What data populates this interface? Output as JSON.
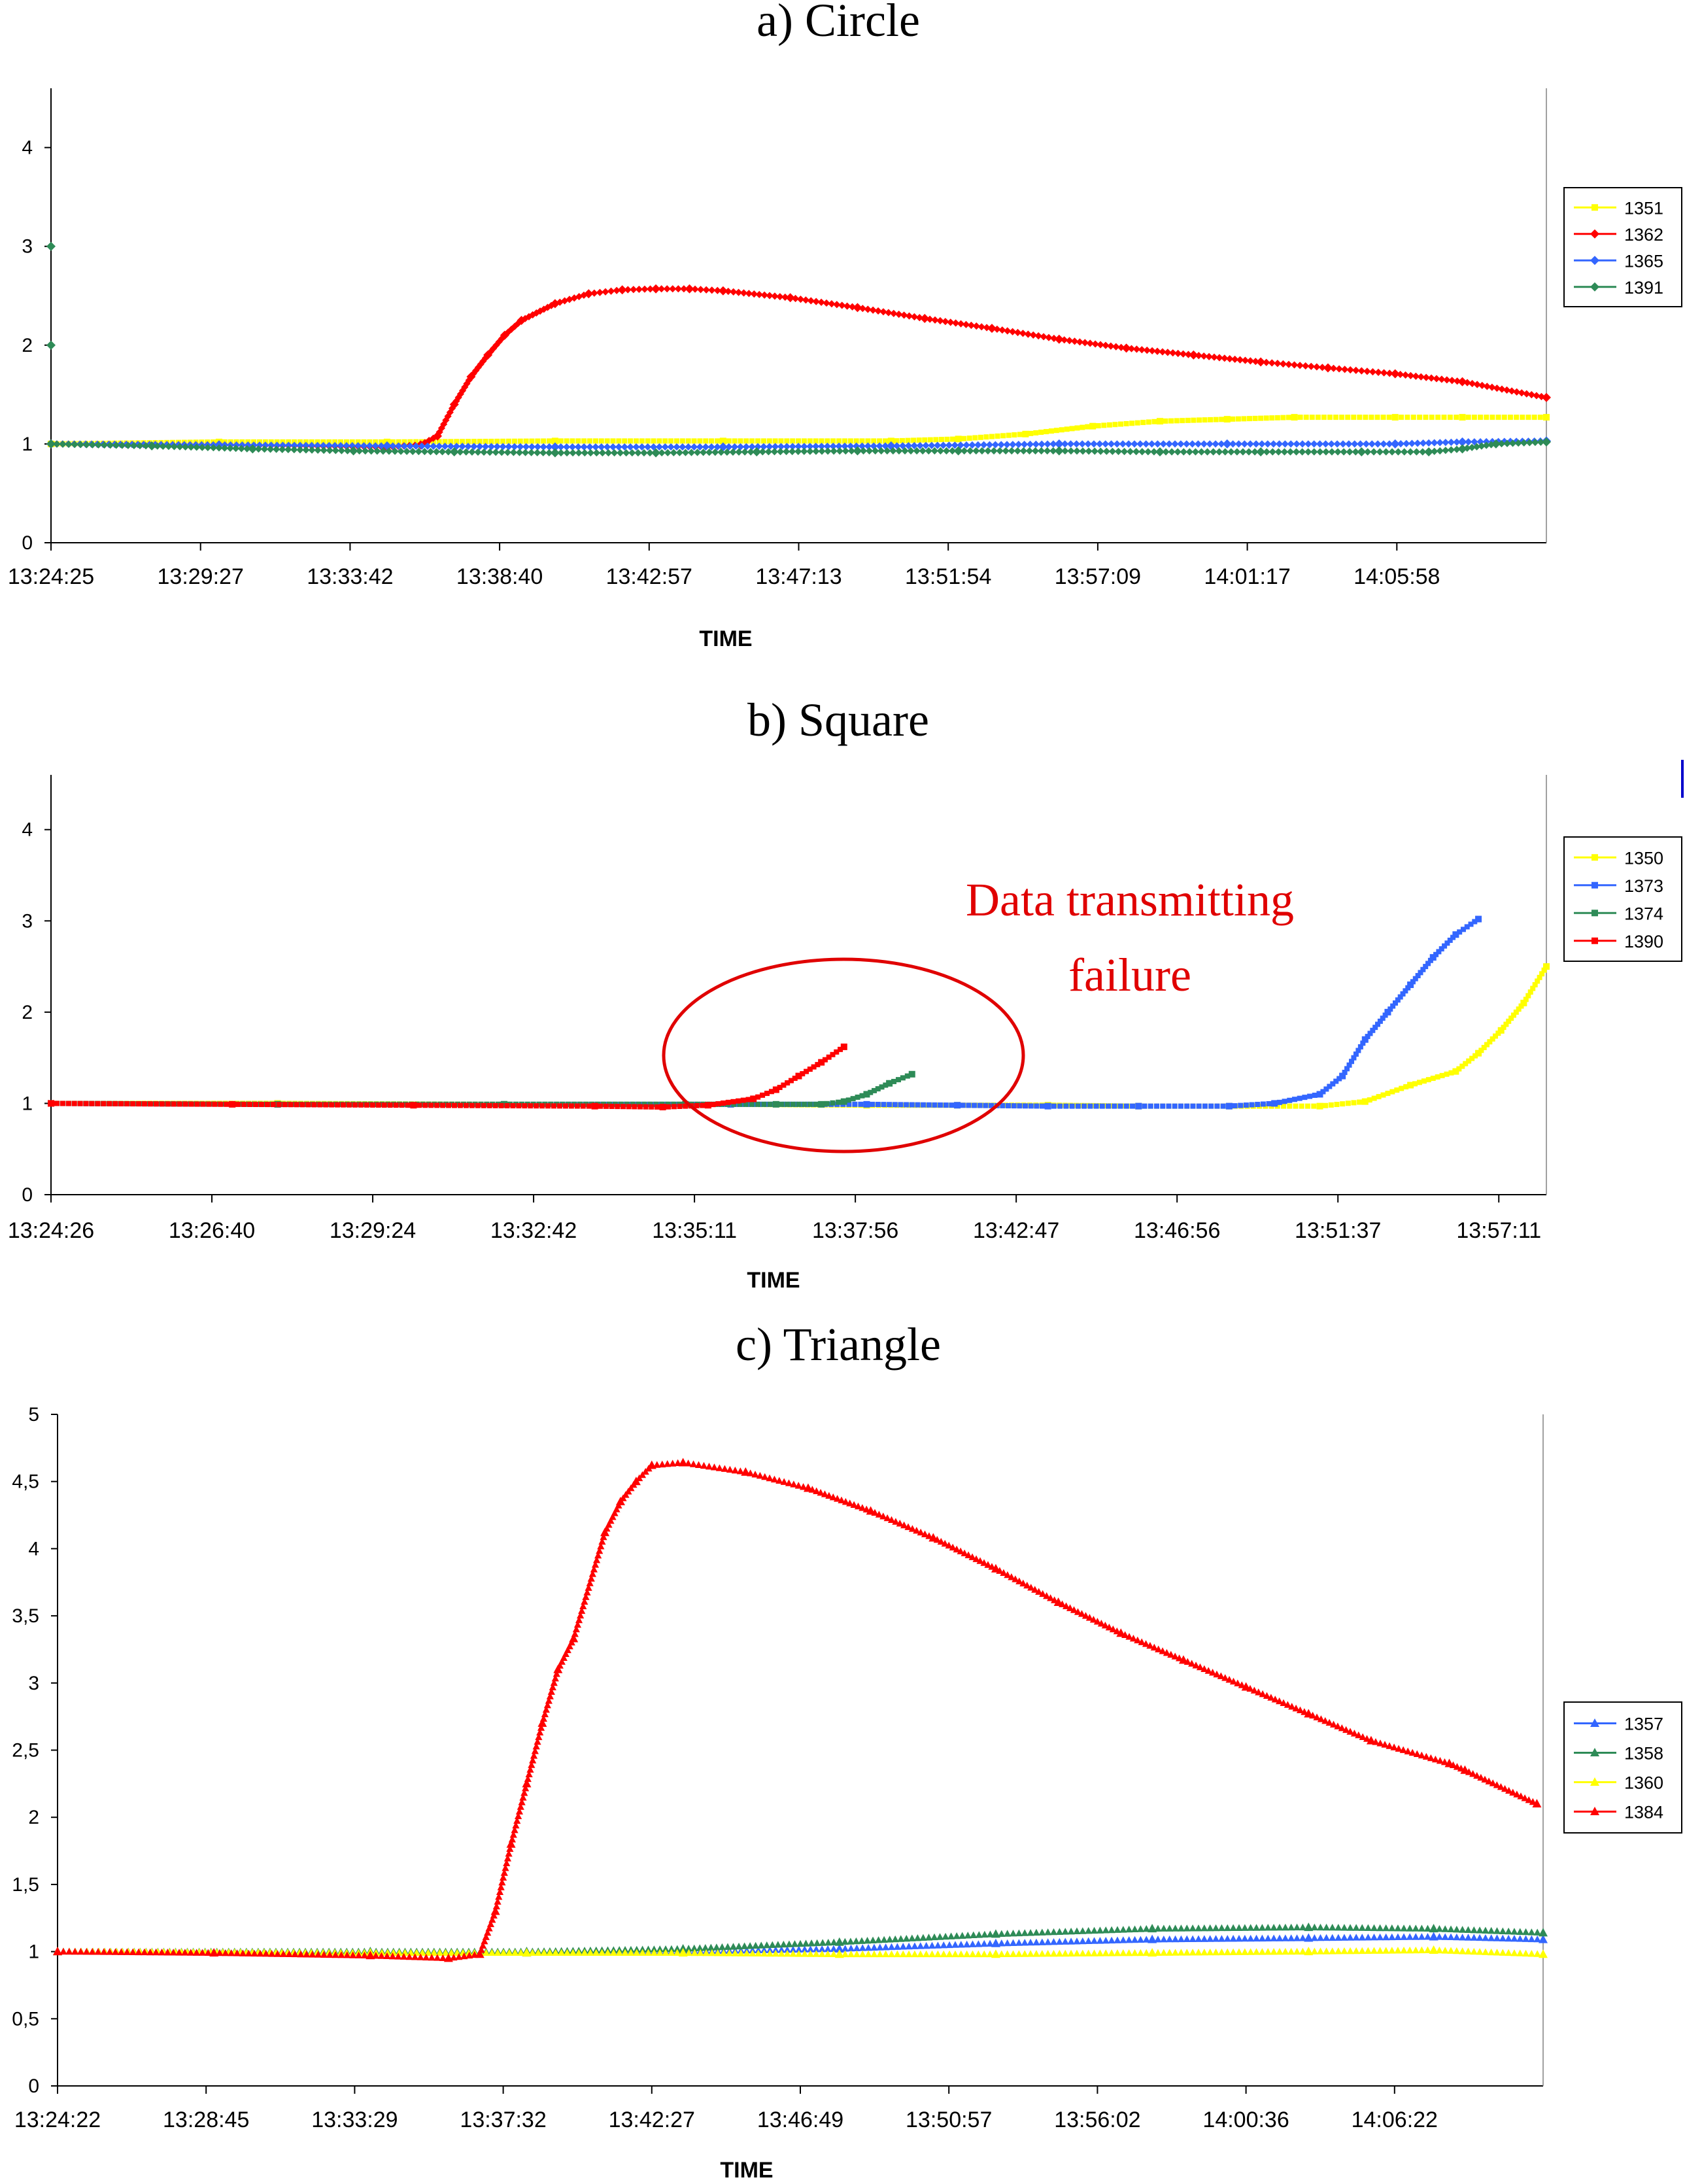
{
  "chart_data": [
    {
      "type": "scatter",
      "title": "a) Circle",
      "xlabel": "TIME",
      "ylabel": "",
      "ylim": [
        0,
        4.6
      ],
      "yticks": [
        "0",
        "1",
        "2",
        "3",
        "4"
      ],
      "ytick_values": [
        0,
        1,
        2,
        3,
        4
      ],
      "xlim_min": [
        0,
        44.5
      ],
      "xticks": [
        "13:24:25",
        "13:29:27",
        "13:33:42",
        "13:38:40",
        "13:42:57",
        "13:47:13",
        "13:51:54",
        "13:57:09",
        "14:01:17",
        "14:05:58"
      ],
      "xtick_positions_min": [
        0,
        4.45,
        8.9,
        13.35,
        17.8,
        22.25,
        26.7,
        31.15,
        35.6,
        40.05
      ],
      "legend": [
        "1351",
        "1362",
        "1365",
        "1391"
      ],
      "series": [
        {
          "name": "1351",
          "color": "#ffff00",
          "marker": "square",
          "x": [
            0,
            5,
            10,
            15,
            20,
            25,
            27,
            29,
            31,
            33,
            35,
            37,
            40,
            42,
            44.5
          ],
          "y": [
            1.0,
            1.02,
            1.02,
            1.03,
            1.03,
            1.03,
            1.05,
            1.1,
            1.18,
            1.23,
            1.25,
            1.27,
            1.27,
            1.27,
            1.27
          ]
        },
        {
          "name": "1362",
          "color": "#ff0000",
          "marker": "diamond",
          "x": [
            0,
            5,
            10,
            11,
            11.5,
            12,
            12.5,
            13,
            13.5,
            14,
            15,
            16,
            17,
            18,
            19,
            20,
            22,
            24,
            26,
            28,
            30,
            32,
            34,
            36,
            38,
            40,
            42,
            44.5
          ],
          "y": [
            1.0,
            0.99,
            0.97,
            0.99,
            1.08,
            1.4,
            1.68,
            1.9,
            2.1,
            2.25,
            2.42,
            2.52,
            2.56,
            2.57,
            2.57,
            2.55,
            2.48,
            2.38,
            2.27,
            2.17,
            2.06,
            1.97,
            1.9,
            1.83,
            1.77,
            1.71,
            1.63,
            1.47
          ]
        },
        {
          "name": "1365",
          "color": "#3366ff",
          "marker": "diamond",
          "x": [
            0,
            5,
            10,
            15,
            20,
            25,
            30,
            35,
            40,
            42,
            44.5
          ],
          "y": [
            1.0,
            0.99,
            0.98,
            0.97,
            0.97,
            0.98,
            1.0,
            1.0,
            1.0,
            1.02,
            1.03
          ]
        },
        {
          "name": "1391",
          "color": "#2e8b57",
          "marker": "diamond",
          "x": [
            0,
            0,
            0,
            3,
            6,
            9,
            12,
            15,
            18,
            21,
            24,
            27,
            30,
            33,
            36,
            39,
            41,
            42,
            43,
            44.5
          ],
          "y": [
            3.0,
            2.0,
            1.0,
            0.98,
            0.95,
            0.93,
            0.92,
            0.91,
            0.91,
            0.92,
            0.93,
            0.93,
            0.93,
            0.92,
            0.92,
            0.92,
            0.92,
            0.95,
            1.0,
            1.02
          ]
        }
      ]
    },
    {
      "type": "scatter",
      "title": "b) Square",
      "xlabel": "TIME",
      "ylabel": "",
      "ylim": [
        0,
        4.6
      ],
      "yticks": [
        "0",
        "1",
        "2",
        "3",
        "4"
      ],
      "ytick_values": [
        0,
        1,
        2,
        3,
        4
      ],
      "xlim_min": [
        0,
        33.0
      ],
      "xticks": [
        "13:24:26",
        "13:26:40",
        "13:29:24",
        "13:32:42",
        "13:35:11",
        "13:37:56",
        "13:42:47",
        "13:46:56",
        "13:51:37",
        "13:57:11"
      ],
      "xtick_positions_min": [
        0,
        3.55,
        7.1,
        10.65,
        14.2,
        17.75,
        21.3,
        24.85,
        28.4,
        31.95
      ],
      "legend": [
        "1350",
        "1373",
        "1374",
        "1390"
      ],
      "annotation": {
        "line1": "Data transmitting",
        "line2": "failure"
      },
      "series": [
        {
          "name": "1350",
          "color": "#ffff00",
          "marker": "square",
          "x": [
            0,
            5,
            10,
            15,
            18,
            20,
            22,
            24,
            26,
            28,
            29,
            30,
            31,
            31.5,
            32,
            32.5,
            33
          ],
          "y": [
            1.0,
            1.0,
            0.99,
            0.99,
            0.98,
            0.98,
            0.98,
            0.97,
            0.97,
            0.97,
            1.02,
            1.2,
            1.35,
            1.55,
            1.8,
            2.1,
            2.5
          ]
        },
        {
          "name": "1373",
          "color": "#3366ff",
          "marker": "square",
          "x": [
            0,
            5,
            10,
            15,
            18,
            20,
            22,
            24,
            26,
            27,
            28,
            28.5,
            29,
            29.5,
            30,
            30.5,
            31,
            31.5
          ],
          "y": [
            1.0,
            0.99,
            0.99,
            0.99,
            0.99,
            0.98,
            0.97,
            0.97,
            0.97,
            1.0,
            1.1,
            1.3,
            1.7,
            2.0,
            2.3,
            2.6,
            2.85,
            3.02
          ]
        },
        {
          "name": "1374",
          "color": "#2e8b57",
          "marker": "square",
          "x": [
            0,
            5,
            10,
            14,
            16,
            17,
            17.5,
            18,
            18.5,
            19
          ],
          "y": [
            1.0,
            0.99,
            0.99,
            0.99,
            0.99,
            0.99,
            1.02,
            1.1,
            1.22,
            1.32
          ]
        },
        {
          "name": "1390",
          "color": "#ff0000",
          "marker": "square",
          "x": [
            0,
            4,
            8,
            12,
            13.5,
            14.5,
            15.5,
            16,
            16.5,
            17,
            17.5
          ],
          "y": [
            1.0,
            0.99,
            0.98,
            0.97,
            0.96,
            0.98,
            1.05,
            1.15,
            1.3,
            1.45,
            1.62
          ]
        }
      ]
    },
    {
      "type": "scatter",
      "title": "c) Triangle",
      "xlabel": "TIME",
      "ylabel": "",
      "ylim": [
        0,
        5
      ],
      "yticks": [
        "0",
        "0,5",
        "1",
        "1,5",
        "2",
        "2,5",
        "3",
        "3,5",
        "4",
        "4,5",
        "5"
      ],
      "ytick_values": [
        0,
        0.5,
        1,
        1.5,
        2,
        2.5,
        3,
        3.5,
        4,
        4.5,
        5
      ],
      "xlim_min": [
        0,
        47.5
      ],
      "xticks": [
        "13:24:22",
        "13:28:45",
        "13:33:29",
        "13:37:32",
        "13:42:27",
        "13:46:49",
        "13:50:57",
        "13:56:02",
        "14:00:36",
        "14:06:22"
      ],
      "xtick_positions_min": [
        0,
        4.75,
        9.5,
        14.25,
        19.0,
        23.75,
        28.5,
        33.25,
        38.0,
        42.75
      ],
      "legend": [
        "1357",
        "1358",
        "1360",
        "1384"
      ],
      "series": [
        {
          "name": "1357",
          "color": "#3366ff",
          "marker": "triangle",
          "x": [
            0,
            10,
            15,
            20,
            25,
            30,
            35,
            40,
            44,
            47.5
          ],
          "y": [
            1.0,
            0.99,
            0.99,
            1.0,
            1.02,
            1.06,
            1.09,
            1.1,
            1.11,
            1.09
          ]
        },
        {
          "name": "1358",
          "color": "#2e8b57",
          "marker": "triangle",
          "x": [
            0,
            10,
            15,
            20,
            25,
            30,
            35,
            40,
            44,
            47.5
          ],
          "y": [
            1.0,
            1.0,
            1.0,
            1.02,
            1.07,
            1.13,
            1.17,
            1.18,
            1.17,
            1.14
          ]
        },
        {
          "name": "1360",
          "color": "#ffff00",
          "marker": "triangle",
          "x": [
            0,
            10,
            15,
            20,
            25,
            30,
            35,
            40,
            44,
            47.5
          ],
          "y": [
            1.0,
            0.99,
            0.99,
            0.99,
            0.98,
            0.98,
            0.99,
            1.0,
            1.01,
            0.98
          ]
        },
        {
          "name": "1384",
          "color": "#ff0000",
          "marker": "triangle",
          "x": [
            0,
            5,
            10,
            12.5,
            13.5,
            14,
            14.5,
            15,
            15.5,
            16,
            16.5,
            17.5,
            18,
            18.5,
            19,
            20,
            22,
            24,
            26,
            28,
            30,
            32,
            34,
            36,
            38,
            40,
            42,
            44.5,
            45,
            47.3
          ],
          "y": [
            1.0,
            0.99,
            0.97,
            0.95,
            0.98,
            1.3,
            1.8,
            2.25,
            2.7,
            3.1,
            3.33,
            4.12,
            4.35,
            4.5,
            4.62,
            4.64,
            4.57,
            4.45,
            4.28,
            4.08,
            3.85,
            3.6,
            3.37,
            3.17,
            2.97,
            2.77,
            2.57,
            2.4,
            2.35,
            2.1
          ]
        }
      ]
    }
  ]
}
